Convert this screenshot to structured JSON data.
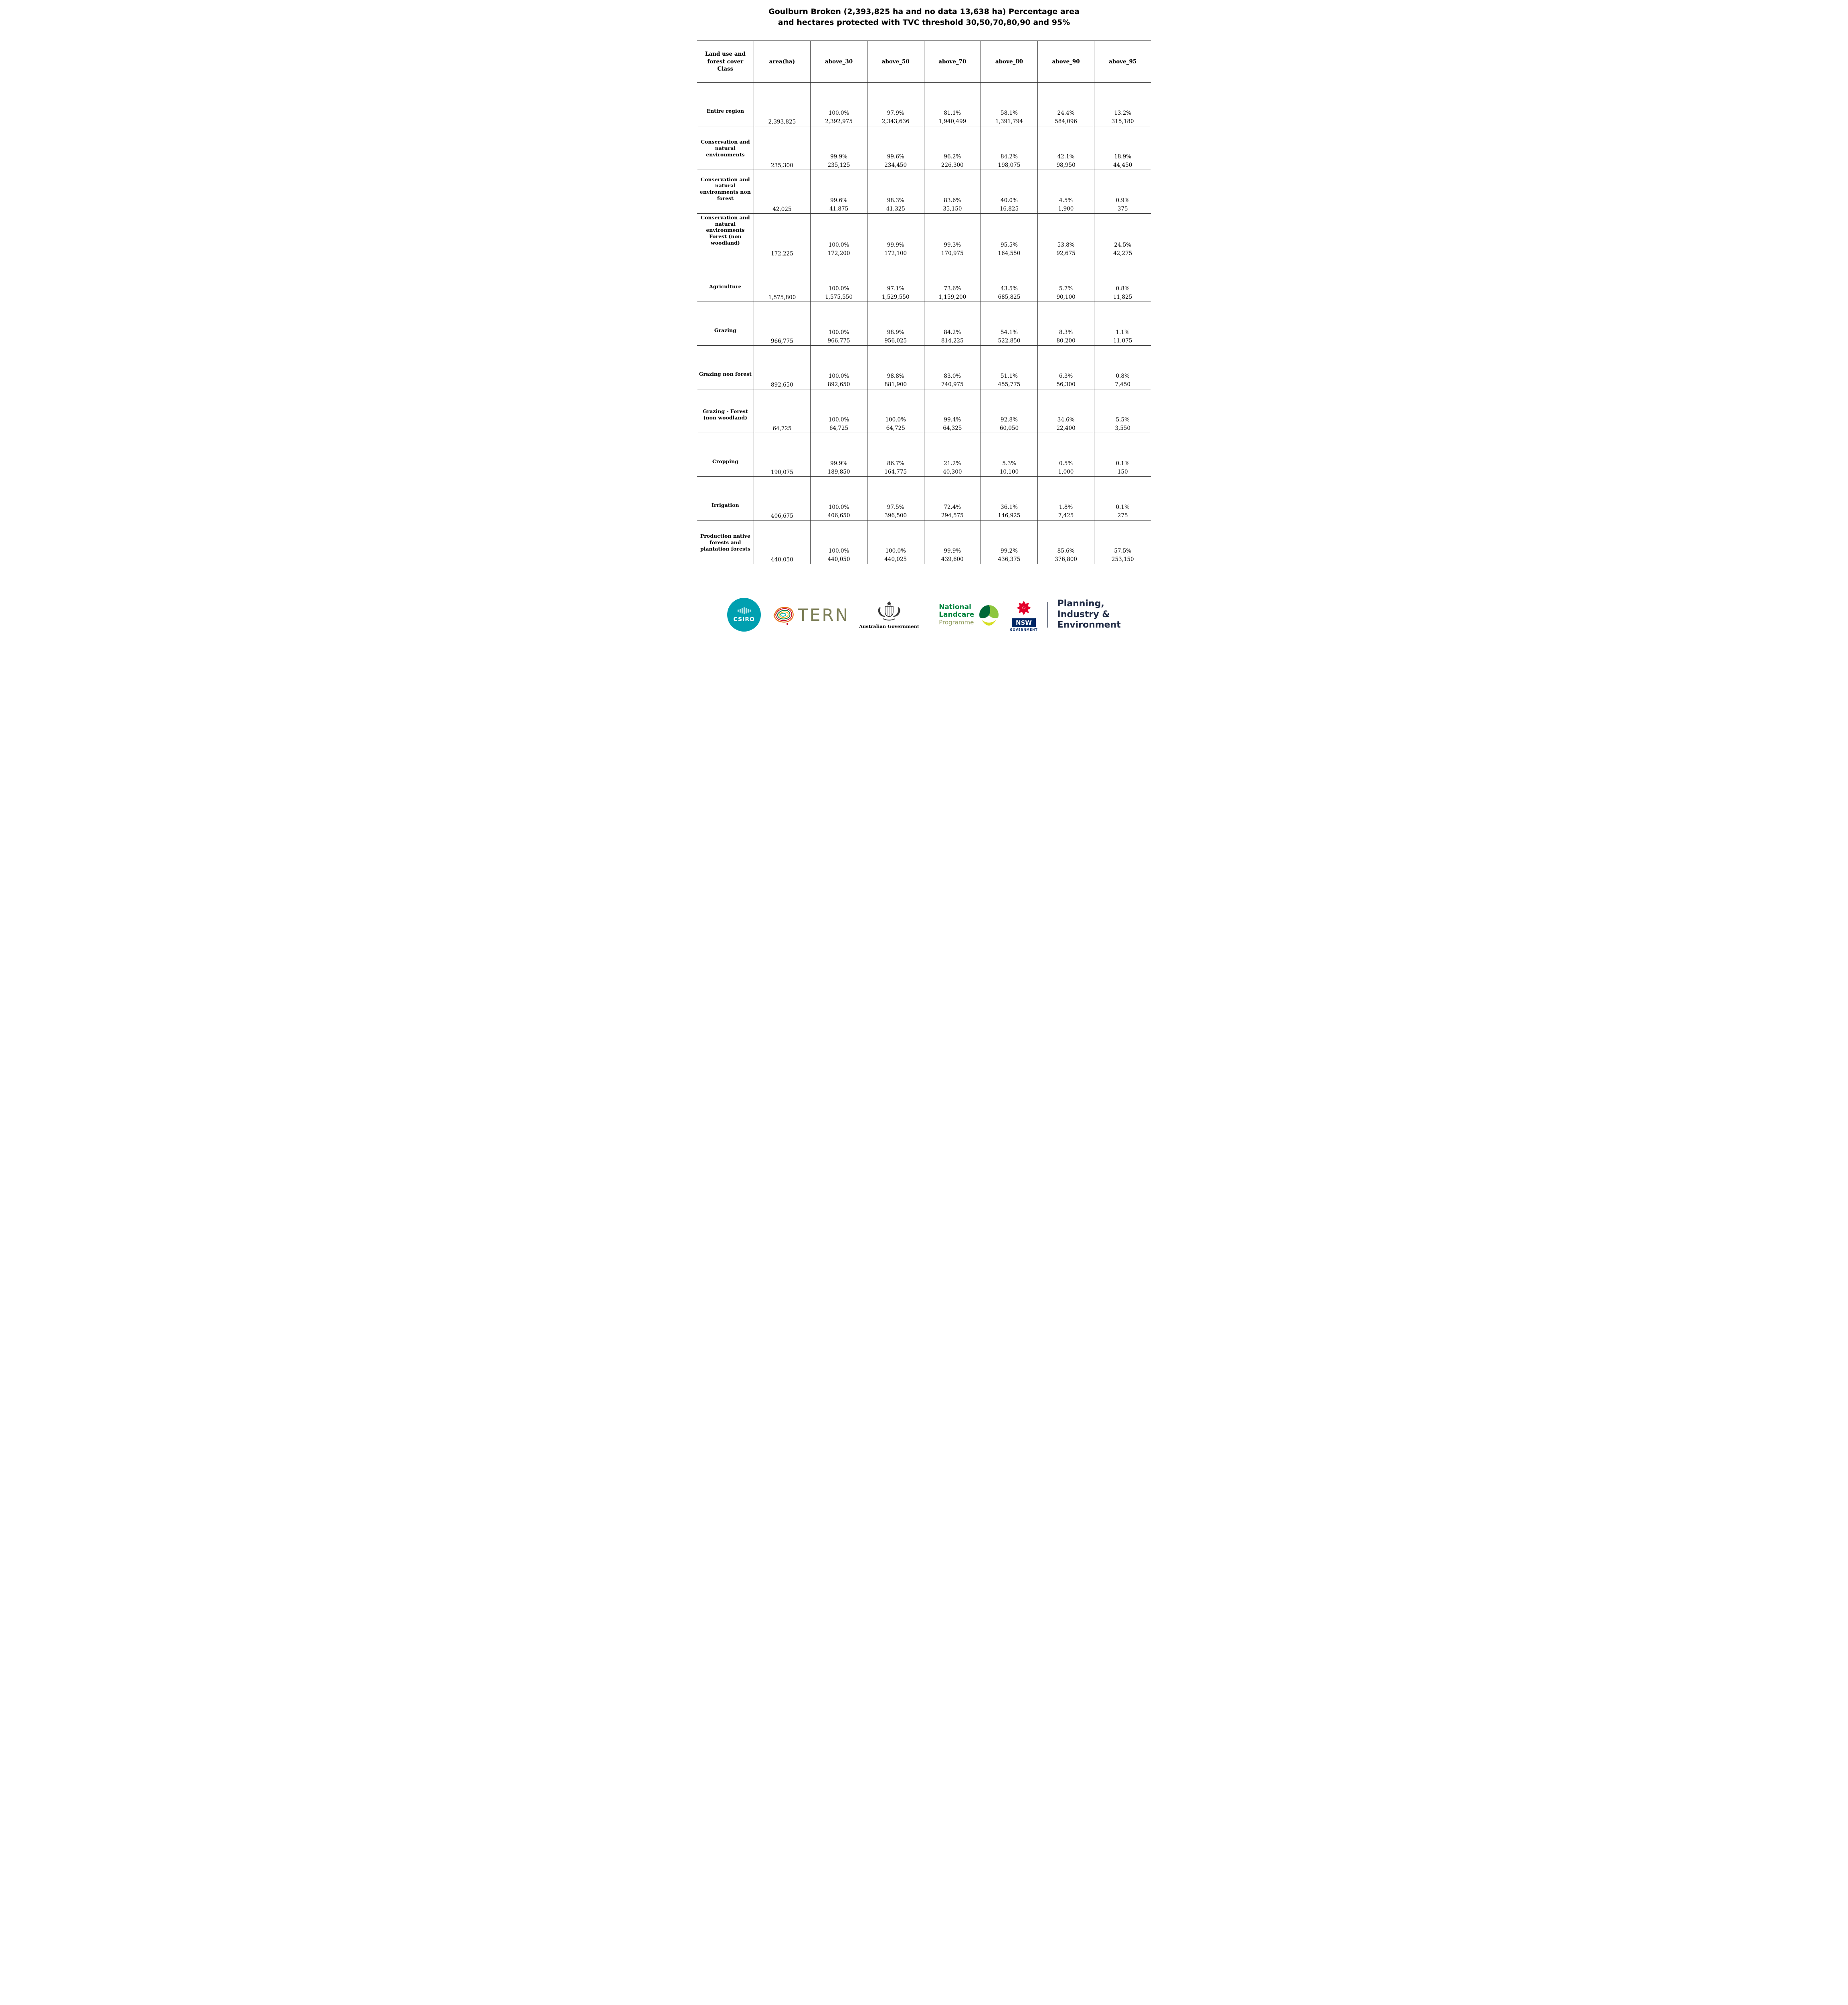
{
  "title": {
    "line1": "Goulburn Broken (2,393,825 ha and no data 13,638 ha) Percentage area",
    "line2": "and hectares protected with TVC threshold 30,50,70,80,90 and 95%"
  },
  "table": {
    "headers": [
      "Land use and forest cover Class",
      "area(ha)",
      "above_30",
      "above_50",
      "above_70",
      "above_80",
      "above_90",
      "above_95"
    ],
    "rows": [
      {
        "class": "Entire region",
        "area": "2,393,825",
        "values": [
          [
            "100.0%",
            "2,392,975"
          ],
          [
            "97.9%",
            "2,343,636"
          ],
          [
            "81.1%",
            "1,940,499"
          ],
          [
            "58.1%",
            "1,391,794"
          ],
          [
            "24.4%",
            "584,096"
          ],
          [
            "13.2%",
            "315,180"
          ]
        ]
      },
      {
        "class": "Conservation and natural environments",
        "area": "235,300",
        "values": [
          [
            "99.9%",
            "235,125"
          ],
          [
            "99.6%",
            "234,450"
          ],
          [
            "96.2%",
            "226,300"
          ],
          [
            "84.2%",
            "198,075"
          ],
          [
            "42.1%",
            "98,950"
          ],
          [
            "18.9%",
            "44,450"
          ]
        ]
      },
      {
        "class": "Conservation and natural environments non forest",
        "area": "42,025",
        "values": [
          [
            "99.6%",
            "41,875"
          ],
          [
            "98.3%",
            "41,325"
          ],
          [
            "83.6%",
            "35,150"
          ],
          [
            "40.0%",
            "16,825"
          ],
          [
            "4.5%",
            "1,900"
          ],
          [
            "0.9%",
            "375"
          ]
        ]
      },
      {
        "class": "Conservation and natural environments Forest (non woodland)",
        "area": "172,225",
        "values": [
          [
            "100.0%",
            "172,200"
          ],
          [
            "99.9%",
            "172,100"
          ],
          [
            "99.3%",
            "170,975"
          ],
          [
            "95.5%",
            "164,550"
          ],
          [
            "53.8%",
            "92,675"
          ],
          [
            "24.5%",
            "42,275"
          ]
        ]
      },
      {
        "class": "Agriculture",
        "area": "1,575,800",
        "values": [
          [
            "100.0%",
            "1,575,550"
          ],
          [
            "97.1%",
            "1,529,550"
          ],
          [
            "73.6%",
            "1,159,200"
          ],
          [
            "43.5%",
            "685,825"
          ],
          [
            "5.7%",
            "90,100"
          ],
          [
            "0.8%",
            "11,825"
          ]
        ]
      },
      {
        "class": "Grazing",
        "area": "966,775",
        "values": [
          [
            "100.0%",
            "966,775"
          ],
          [
            "98.9%",
            "956,025"
          ],
          [
            "84.2%",
            "814,225"
          ],
          [
            "54.1%",
            "522,850"
          ],
          [
            "8.3%",
            "80,200"
          ],
          [
            "1.1%",
            "11,075"
          ]
        ]
      },
      {
        "class": "Grazing non forest",
        "area": "892,650",
        "values": [
          [
            "100.0%",
            "892,650"
          ],
          [
            "98.8%",
            "881,900"
          ],
          [
            "83.0%",
            "740,975"
          ],
          [
            "51.1%",
            "455,775"
          ],
          [
            "6.3%",
            "56,300"
          ],
          [
            "0.8%",
            "7,450"
          ]
        ]
      },
      {
        "class": "Grazing - Forest (non woodland)",
        "area": "64,725",
        "values": [
          [
            "100.0%",
            "64,725"
          ],
          [
            "100.0%",
            "64,725"
          ],
          [
            "99.4%",
            "64,325"
          ],
          [
            "92.8%",
            "60,050"
          ],
          [
            "34.6%",
            "22,400"
          ],
          [
            "5.5%",
            "3,550"
          ]
        ]
      },
      {
        "class": "Cropping",
        "area": "190,075",
        "values": [
          [
            "99.9%",
            "189,850"
          ],
          [
            "86.7%",
            "164,775"
          ],
          [
            "21.2%",
            "40,300"
          ],
          [
            "5.3%",
            "10,100"
          ],
          [
            "0.5%",
            "1,000"
          ],
          [
            "0.1%",
            "150"
          ]
        ]
      },
      {
        "class": "Irrigation",
        "area": "406,675",
        "values": [
          [
            "100.0%",
            "406,650"
          ],
          [
            "97.5%",
            "396,500"
          ],
          [
            "72.4%",
            "294,575"
          ],
          [
            "36.1%",
            "146,925"
          ],
          [
            "1.8%",
            "7,425"
          ],
          [
            "0.1%",
            "275"
          ]
        ]
      },
      {
        "class": "Production native forests and plantation forests",
        "area": "440,050",
        "values": [
          [
            "100.0%",
            "440,050"
          ],
          [
            "100.0%",
            "440,025"
          ],
          [
            "99.9%",
            "439,600"
          ],
          [
            "99.2%",
            "436,375"
          ],
          [
            "85.6%",
            "376,800"
          ],
          [
            "57.5%",
            "253,150"
          ]
        ]
      }
    ]
  },
  "footer": {
    "csiro": {
      "label": "CSIRO"
    },
    "tern": {
      "label": "TERN"
    },
    "australian_government": {
      "label": "Australian Government"
    },
    "landcare": {
      "line1": "National",
      "line2": "Landcare",
      "line3": "Programme"
    },
    "nsw": {
      "label": "NSW",
      "sublabel": "GOVERNMENT"
    },
    "planning": {
      "line1": "Planning,",
      "line2": "Industry &",
      "line3": "Environment"
    }
  },
  "colors": {
    "csiro_teal": "#00a0b0",
    "tern_olive": "#7c7e57",
    "landcare_green": "#00843d",
    "landcare_light": "#8f9a5a",
    "nsw_red": "#e4002b",
    "nsw_navy": "#002664",
    "planning_navy": "#1f2a44",
    "border": "#333333"
  }
}
